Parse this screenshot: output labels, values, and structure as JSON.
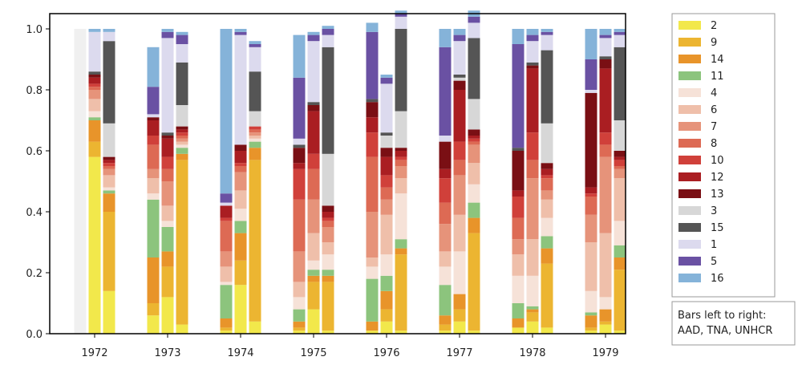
{
  "chart_data": {
    "type": "bar",
    "stacked": true,
    "normalized": true,
    "title": "",
    "xlabel": "",
    "ylabel": "",
    "ylim": [
      0,
      1.0
    ],
    "yticks": [
      "0.0",
      "0.2",
      "0.4",
      "0.6",
      "0.8",
      "1.0"
    ],
    "categories": [
      "1972",
      "1973",
      "1974",
      "1975",
      "1976",
      "1977",
      "1978",
      "1979"
    ],
    "bar_sources": [
      "AAD",
      "TNA",
      "UNHCR"
    ],
    "note": [
      "Bars left to right:",
      "AAD, TNA, UNHCR"
    ],
    "legend_position": "right",
    "grid": false,
    "stack_order": [
      "2",
      "9",
      "14",
      "11",
      "4",
      "6",
      "7",
      "8",
      "10",
      "12",
      "13",
      "3",
      "15",
      "1",
      "5",
      "16"
    ],
    "series": [
      {
        "name": "2",
        "color": "#f2e84b"
      },
      {
        "name": "9",
        "color": "#ecb531"
      },
      {
        "name": "14",
        "color": "#e8942a"
      },
      {
        "name": "11",
        "color": "#8cc47d"
      },
      {
        "name": "4",
        "color": "#f6e2d8"
      },
      {
        "name": "6",
        "color": "#efbfaa"
      },
      {
        "name": "7",
        "color": "#e6937a"
      },
      {
        "name": "8",
        "color": "#dd6a54"
      },
      {
        "name": "10",
        "color": "#d0403a"
      },
      {
        "name": "12",
        "color": "#aa1e22"
      },
      {
        "name": "13",
        "color": "#7a0f14"
      },
      {
        "name": "3",
        "color": "#d7d7d7"
      },
      {
        "name": "15",
        "color": "#555555"
      },
      {
        "name": "1",
        "color": "#dcdaee"
      },
      {
        "name": "5",
        "color": "#6a51a3"
      },
      {
        "name": "16",
        "color": "#85b3d9"
      }
    ],
    "placeholder_bar": {
      "category": "1972",
      "source": "AAD",
      "value": 1.0,
      "color": "#f0f0f0"
    },
    "bars": [
      {
        "category": "1972",
        "source": "TNA",
        "values": {
          "2": 0.58,
          "9": 0.05,
          "14": 0.07,
          "11": 0.01,
          "4": 0.02,
          "6": 0.04,
          "7": 0.03,
          "8": 0.01,
          "10": 0.01,
          "12": 0.02,
          "13": 0.01,
          "3": 0.0,
          "15": 0.01,
          "1": 0.13,
          "5": 0.0,
          "16": 0.01
        }
      },
      {
        "category": "1972",
        "source": "UNHCR",
        "values": {
          "2": 0.14,
          "9": 0.26,
          "14": 0.06,
          "11": 0.01,
          "4": 0.01,
          "6": 0.04,
          "7": 0.02,
          "8": 0.01,
          "10": 0.01,
          "12": 0.01,
          "13": 0.01,
          "3": 0.11,
          "15": 0.27,
          "1": 0.03,
          "5": 0.0,
          "16": 0.01
        }
      },
      {
        "category": "1973",
        "source": "AAD",
        "values": {
          "2": 0.06,
          "9": 0.04,
          "14": 0.15,
          "11": 0.19,
          "4": 0.02,
          "6": 0.05,
          "7": 0.03,
          "8": 0.08,
          "10": 0.03,
          "12": 0.05,
          "13": 0.01,
          "3": 0.0,
          "15": 0.0,
          "1": 0.01,
          "5": 0.09,
          "16": 0.13
        }
      },
      {
        "category": "1973",
        "source": "TNA",
        "values": {
          "2": 0.12,
          "9": 0.1,
          "14": 0.05,
          "11": 0.08,
          "4": 0.02,
          "6": 0.05,
          "7": 0.08,
          "8": 0.04,
          "10": 0.04,
          "12": 0.06,
          "13": 0.01,
          "3": 0.0,
          "15": 0.01,
          "1": 0.31,
          "5": 0.02,
          "16": 0.01
        }
      },
      {
        "category": "1973",
        "source": "UNHCR",
        "values": {
          "2": 0.03,
          "9": 0.54,
          "14": 0.02,
          "11": 0.02,
          "4": 0.01,
          "6": 0.01,
          "7": 0.01,
          "8": 0.01,
          "10": 0.01,
          "12": 0.01,
          "13": 0.01,
          "3": 0.07,
          "15": 0.14,
          "1": 0.06,
          "5": 0.03,
          "16": 0.01
        }
      },
      {
        "category": "1974",
        "source": "AAD",
        "values": {
          "2": 0.01,
          "9": 0.01,
          "14": 0.03,
          "11": 0.11,
          "4": 0.01,
          "6": 0.05,
          "7": 0.05,
          "8": 0.1,
          "10": 0.01,
          "12": 0.04,
          "13": 0.0,
          "3": 0.0,
          "15": 0.0,
          "1": 0.01,
          "5": 0.03,
          "16": 0.54
        }
      },
      {
        "category": "1974",
        "source": "TNA",
        "values": {
          "2": 0.16,
          "9": 0.08,
          "14": 0.09,
          "11": 0.04,
          "4": 0.04,
          "6": 0.06,
          "7": 0.06,
          "8": 0.02,
          "10": 0.01,
          "12": 0.04,
          "13": 0.02,
          "3": 0.0,
          "15": 0.0,
          "1": 0.36,
          "5": 0.01,
          "16": 0.01
        }
      },
      {
        "category": "1974",
        "source": "UNHCR",
        "values": {
          "2": 0.04,
          "9": 0.53,
          "14": 0.04,
          "11": 0.02,
          "4": 0.01,
          "6": 0.01,
          "7": 0.01,
          "8": 0.01,
          "10": 0.01,
          "12": 0.0,
          "13": 0.0,
          "3": 0.05,
          "15": 0.13,
          "1": 0.08,
          "5": 0.01,
          "16": 0.01
        }
      },
      {
        "category": "1975",
        "source": "AAD",
        "values": {
          "2": 0.01,
          "9": 0.01,
          "14": 0.02,
          "11": 0.04,
          "4": 0.04,
          "6": 0.05,
          "7": 0.1,
          "8": 0.17,
          "10": 0.1,
          "12": 0.02,
          "13": 0.05,
          "3": 0.0,
          "15": 0.01,
          "1": 0.02,
          "5": 0.2,
          "16": 0.14
        }
      },
      {
        "category": "1975",
        "source": "TNA",
        "values": {
          "2": 0.08,
          "9": 0.09,
          "14": 0.02,
          "11": 0.02,
          "4": 0.03,
          "6": 0.09,
          "7": 0.11,
          "8": 0.1,
          "10": 0.05,
          "12": 0.14,
          "13": 0.02,
          "3": 0.0,
          "15": 0.01,
          "1": 0.2,
          "5": 0.02,
          "16": 0.01
        }
      },
      {
        "category": "1975",
        "source": "UNHCR",
        "values": {
          "2": 0.01,
          "9": 0.16,
          "14": 0.02,
          "11": 0.02,
          "4": 0.05,
          "6": 0.04,
          "7": 0.05,
          "8": 0.02,
          "10": 0.01,
          "12": 0.02,
          "13": 0.02,
          "3": 0.17,
          "15": 0.35,
          "1": 0.04,
          "5": 0.02,
          "16": 0.01
        }
      },
      {
        "category": "1976",
        "source": "AAD",
        "values": {
          "2": 0.01,
          "9": 0.0,
          "14": 0.03,
          "11": 0.14,
          "4": 0.04,
          "6": 0.03,
          "7": 0.15,
          "8": 0.18,
          "10": 0.08,
          "12": 0.05,
          "13": 0.05,
          "3": 0.0,
          "15": 0.01,
          "1": 0.0,
          "5": 0.22,
          "16": 0.03
        }
      },
      {
        "category": "1976",
        "source": "TNA",
        "values": {
          "2": 0.04,
          "9": 0.04,
          "14": 0.06,
          "11": 0.05,
          "4": 0.07,
          "6": 0.13,
          "7": 0.05,
          "8": 0.04,
          "10": 0.04,
          "12": 0.06,
          "13": 0.03,
          "3": 0.04,
          "15": 0.01,
          "1": 0.16,
          "5": 0.02,
          "16": 0.01
        }
      },
      {
        "category": "1976",
        "source": "UNHCR",
        "values": {
          "2": 0.01,
          "9": 0.25,
          "14": 0.02,
          "11": 0.03,
          "4": 0.15,
          "6": 0.05,
          "7": 0.04,
          "8": 0.02,
          "10": 0.01,
          "12": 0.02,
          "13": 0.01,
          "3": 0.12,
          "15": 0.27,
          "1": 0.04,
          "5": 0.01,
          "16": 0.01
        }
      },
      {
        "category": "1977",
        "source": "AAD",
        "values": {
          "2": 0.01,
          "9": 0.02,
          "14": 0.03,
          "11": 0.1,
          "4": 0.06,
          "6": 0.05,
          "7": 0.09,
          "8": 0.07,
          "10": 0.08,
          "12": 0.03,
          "13": 0.09,
          "3": 0.0,
          "15": 0.0,
          "1": 0.02,
          "5": 0.29,
          "16": 0.06
        }
      },
      {
        "category": "1977",
        "source": "TNA",
        "values": {
          "2": 0.04,
          "9": 0.04,
          "14": 0.05,
          "11": 0.0,
          "4": 0.14,
          "6": 0.12,
          "7": 0.13,
          "8": 0.05,
          "10": 0.06,
          "12": 0.17,
          "13": 0.03,
          "3": 0.01,
          "15": 0.01,
          "1": 0.11,
          "5": 0.02,
          "16": 0.02
        }
      },
      {
        "category": "1977",
        "source": "UNHCR",
        "values": {
          "2": 0.01,
          "9": 0.32,
          "14": 0.05,
          "11": 0.05,
          "4": 0.06,
          "6": 0.07,
          "7": 0.06,
          "8": 0.01,
          "10": 0.01,
          "12": 0.01,
          "13": 0.02,
          "3": 0.1,
          "15": 0.2,
          "1": 0.05,
          "5": 0.02,
          "16": 0.02
        }
      },
      {
        "category": "1978",
        "source": "AAD",
        "values": {
          "2": 0.02,
          "9": 0.0,
          "14": 0.03,
          "11": 0.05,
          "4": 0.09,
          "6": 0.07,
          "7": 0.05,
          "8": 0.07,
          "10": 0.07,
          "12": 0.02,
          "13": 0.13,
          "3": 0.0,
          "15": 0.01,
          "1": 0.0,
          "5": 0.34,
          "16": 0.05
        }
      },
      {
        "category": "1978",
        "source": "TNA",
        "values": {
          "2": 0.04,
          "9": 0.03,
          "14": 0.01,
          "11": 0.01,
          "4": 0.1,
          "6": 0.12,
          "7": 0.2,
          "8": 0.06,
          "10": 0.09,
          "12": 0.21,
          "13": 0.01,
          "3": 0.0,
          "15": 0.01,
          "1": 0.07,
          "5": 0.02,
          "16": 0.02
        }
      },
      {
        "category": "1978",
        "source": "UNHCR",
        "values": {
          "2": 0.02,
          "9": 0.21,
          "14": 0.05,
          "11": 0.04,
          "4": 0.06,
          "6": 0.06,
          "7": 0.03,
          "8": 0.04,
          "10": 0.01,
          "12": 0.02,
          "13": 0.02,
          "3": 0.13,
          "15": 0.24,
          "1": 0.05,
          "5": 0.01,
          "16": 0.01
        }
      },
      {
        "category": "1979",
        "source": "AAD",
        "values": {
          "2": 0.01,
          "9": 0.01,
          "14": 0.04,
          "11": 0.01,
          "4": 0.07,
          "6": 0.16,
          "7": 0.09,
          "8": 0.06,
          "10": 0.01,
          "12": 0.02,
          "13": 0.31,
          "3": 0.0,
          "15": 0.0,
          "1": 0.01,
          "5": 0.1,
          "16": 0.1
        }
      },
      {
        "category": "1979",
        "source": "TNA",
        "values": {
          "2": 0.03,
          "9": 0.01,
          "14": 0.04,
          "11": 0.0,
          "4": 0.04,
          "6": 0.21,
          "7": 0.25,
          "8": 0.04,
          "10": 0.04,
          "12": 0.21,
          "13": 0.03,
          "3": 0.0,
          "15": 0.01,
          "1": 0.06,
          "5": 0.01,
          "16": 0.02
        }
      },
      {
        "category": "1979",
        "source": "UNHCR",
        "values": {
          "2": 0.01,
          "9": 0.2,
          "14": 0.04,
          "11": 0.04,
          "4": 0.08,
          "6": 0.14,
          "7": 0.03,
          "8": 0.01,
          "10": 0.02,
          "12": 0.01,
          "13": 0.02,
          "3": 0.1,
          "15": 0.24,
          "1": 0.04,
          "5": 0.01,
          "16": 0.01
        }
      }
    ]
  }
}
